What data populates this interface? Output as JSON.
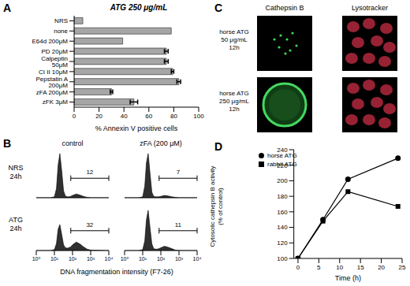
{
  "chart_data": [
    {
      "panel": "A",
      "type": "bar",
      "orientation": "horizontal",
      "title": "ATG 250 μg/mL",
      "categories": [
        "NRS",
        "none",
        "E64d 200μM",
        "PD 20μM",
        "Calpeptin 50μM",
        "CI II 10μM",
        "Pepstatin A 200μM",
        "zFA 200μM",
        "zFK 3μM"
      ],
      "values": [
        7,
        78,
        39,
        74,
        74,
        79,
        84,
        30,
        48
      ],
      "errors": [
        0,
        0,
        0,
        1.5,
        1.5,
        1,
        1.5,
        1,
        3
      ],
      "color": "#a6a6a6",
      "x_label": "% Annexin V positive cells",
      "xlim": [
        0,
        100
      ],
      "xticks": [
        0,
        20,
        40,
        60,
        80,
        100
      ]
    },
    {
      "panel": "B",
      "type": "area",
      "log": "x",
      "tick_labels": "x",
      "x_label": "DNA fragmentation intensity (F7-26)",
      "columns": [
        "control",
        "zFA (200 μM)"
      ],
      "rows": [
        [
          "NRS",
          "24h"
        ],
        [
          "ATG",
          "24h"
        ]
      ],
      "xlim": [
        1,
        10000
      ],
      "xticks": [
        {
          "value": 1,
          "label": "10⁰"
        },
        {
          "value": 10,
          "label": "10¹"
        },
        {
          "value": 100,
          "label": "10²"
        },
        {
          "value": 1000,
          "label": "10³"
        },
        {
          "value": 10000,
          "label": "10⁴"
        }
      ],
      "ylim": [
        0,
        100
      ],
      "color": "#1a1a1a",
      "x": [
        1,
        3,
        6,
        10,
        13,
        16,
        20,
        25,
        32,
        40,
        50,
        63,
        80,
        100,
        160,
        250,
        400,
        630,
        1000,
        10000
      ],
      "panels": [
        {
          "row": 0,
          "col": 0,
          "gate_range": [
            80,
            10000
          ],
          "gate_percent": 12,
          "values": [
            0,
            0,
            0,
            2,
            20,
            70,
            95,
            60,
            15,
            4,
            2,
            2,
            3,
            5,
            8,
            6,
            3,
            1,
            0,
            0
          ]
        },
        {
          "row": 0,
          "col": 1,
          "gate_range": [
            80,
            10000
          ],
          "gate_percent": 7,
          "values": [
            0,
            0,
            0,
            2,
            25,
            75,
            95,
            55,
            12,
            3,
            2,
            2,
            2,
            3,
            5,
            4,
            2,
            1,
            0,
            0
          ]
        },
        {
          "row": 1,
          "col": 0,
          "gate_range": [
            80,
            10000
          ],
          "gate_percent": 32,
          "values": [
            0,
            0,
            0,
            2,
            15,
            45,
            55,
            35,
            12,
            6,
            5,
            6,
            8,
            12,
            18,
            14,
            8,
            3,
            1,
            0
          ]
        },
        {
          "row": 1,
          "col": 1,
          "gate_range": [
            80,
            10000
          ],
          "gate_percent": 11,
          "values": [
            0,
            0,
            0,
            2,
            20,
            65,
            85,
            50,
            14,
            4,
            3,
            3,
            4,
            6,
            9,
            7,
            4,
            1,
            0,
            0
          ]
        }
      ]
    },
    {
      "panel": "C",
      "type": "image",
      "columns": [
        "Cathepsin B",
        "Lysotracker"
      ],
      "rows": [
        [
          "horse ATG",
          "50 μg/mL",
          "12h"
        ],
        [
          "horse ATG",
          "250 μg/mL",
          "12h"
        ]
      ]
    },
    {
      "panel": "D",
      "type": "line",
      "x_label": "Time (h)",
      "y_label": [
        "Cytosolic cathepsin B activity",
        "(% of control)"
      ],
      "xlim": [
        -1,
        25
      ],
      "xticks": [
        0,
        5,
        10,
        15,
        20,
        25
      ],
      "ylim": [
        100,
        240
      ],
      "yticks": [
        100,
        120,
        140,
        160,
        180,
        200,
        220,
        240
      ],
      "x": [
        0,
        6,
        12,
        24
      ],
      "legend": "upper left",
      "series": [
        {
          "name": "rabbit ATG",
          "color": "#000000",
          "marker": "square",
          "values": [
            100,
            148,
            186,
            167
          ]
        },
        {
          "name": "horse ATG",
          "color": "#000000",
          "marker": "circle",
          "values": [
            100,
            150,
            202,
            229
          ]
        }
      ]
    }
  ]
}
